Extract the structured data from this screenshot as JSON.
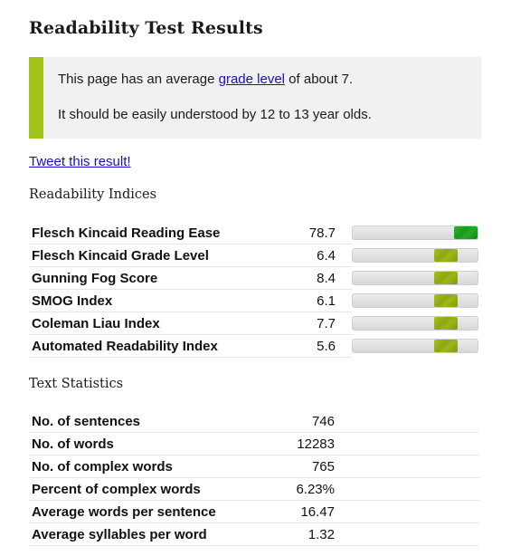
{
  "page": {
    "title": "Readability Test Results"
  },
  "summary": {
    "line1_prefix": "This page has an average ",
    "line1_link": "grade level",
    "line1_suffix": " of about 7.",
    "line2": "It should be easily understood by 12 to 13 year olds."
  },
  "tweet_link": "Tweet this result!",
  "indices": {
    "heading": "Readability Indices",
    "rows": [
      {
        "name": "Flesch Kincaid Reading Ease",
        "score": "78.7",
        "bar_level": 1.0,
        "bar_color": "#1f9f1f"
      },
      {
        "name": "Flesch Kincaid Grade Level",
        "score": "6.4",
        "bar_level": 0.8,
        "bar_color": "#95ae16"
      },
      {
        "name": "Gunning Fog Score",
        "score": "8.4",
        "bar_level": 0.8,
        "bar_color": "#95ae16"
      },
      {
        "name": "SMOG Index",
        "score": "6.1",
        "bar_level": 0.8,
        "bar_color": "#95ae16"
      },
      {
        "name": "Coleman Liau Index",
        "score": "7.7",
        "bar_level": 0.8,
        "bar_color": "#95ae16"
      },
      {
        "name": "Automated Readability Index",
        "score": "5.6",
        "bar_level": 0.8,
        "bar_color": "#95ae16"
      }
    ]
  },
  "statistics": {
    "heading": "Text Statistics",
    "rows": [
      {
        "name": "No. of sentences",
        "value": "746"
      },
      {
        "name": "No. of words",
        "value": "12283"
      },
      {
        "name": "No. of complex words",
        "value": "765"
      },
      {
        "name": "Percent of complex words",
        "value": "6.23%"
      },
      {
        "name": "Average words per sentence",
        "value": "16.47"
      },
      {
        "name": "Average syllables per word",
        "value": "1.32"
      }
    ]
  },
  "colors": {
    "accent_bar": "#a3c41a",
    "link": "#1a0dcc",
    "summary_bg": "#f1f1f1"
  }
}
